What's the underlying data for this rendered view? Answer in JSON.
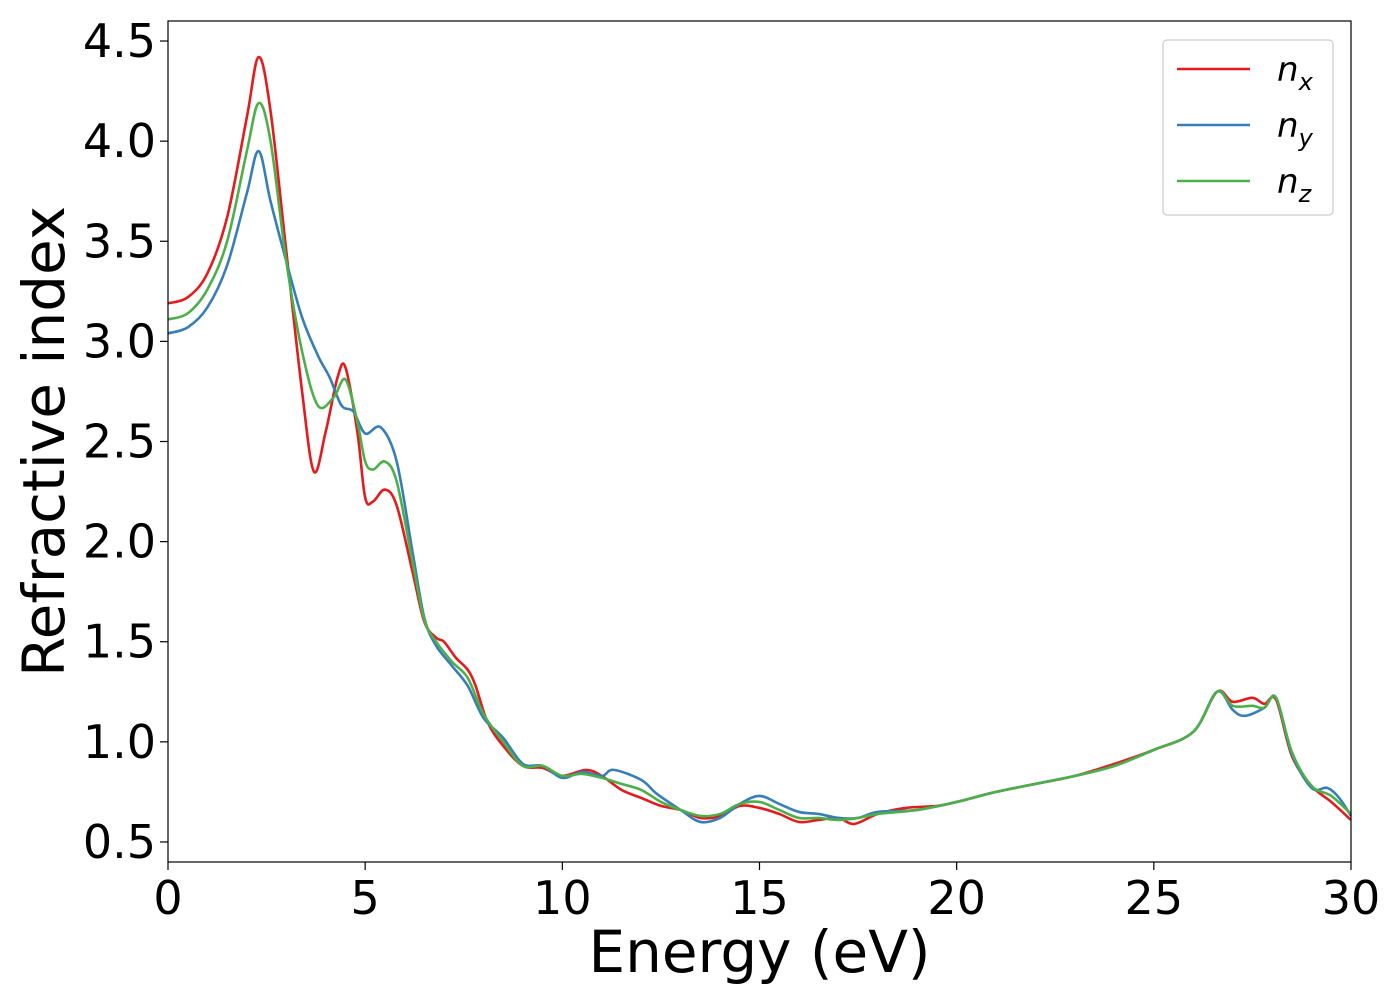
{
  "chart_data": {
    "type": "line",
    "xlabel": "Energy (eV)",
    "ylabel": "Refractive index",
    "xlim": [
      0,
      30
    ],
    "ylim": [
      0.4,
      4.6
    ],
    "x_ticks": [
      "0",
      "5",
      "10",
      "15",
      "20",
      "25",
      "30"
    ],
    "y_ticks": [
      "0.5",
      "1.0",
      "1.5",
      "2.0",
      "2.5",
      "3.0",
      "3.5",
      "4.0",
      "4.5"
    ],
    "grid": false,
    "legend_position": "top-right",
    "series": [
      {
        "name": "n",
        "subscript": "x",
        "color": "#e41a1c",
        "points": [
          [
            0,
            3.19
          ],
          [
            0.5,
            3.22
          ],
          [
            1.0,
            3.34
          ],
          [
            1.5,
            3.62
          ],
          [
            2.0,
            4.12
          ],
          [
            2.3,
            4.42
          ],
          [
            2.6,
            4.15
          ],
          [
            3.0,
            3.45
          ],
          [
            3.4,
            2.75
          ],
          [
            3.7,
            2.35
          ],
          [
            4.0,
            2.55
          ],
          [
            4.3,
            2.82
          ],
          [
            4.5,
            2.87
          ],
          [
            4.8,
            2.55
          ],
          [
            5.0,
            2.22
          ],
          [
            5.2,
            2.2
          ],
          [
            5.5,
            2.26
          ],
          [
            5.8,
            2.18
          ],
          [
            6.2,
            1.85
          ],
          [
            6.5,
            1.6
          ],
          [
            6.8,
            1.52
          ],
          [
            7.0,
            1.5
          ],
          [
            7.3,
            1.42
          ],
          [
            7.6,
            1.36
          ],
          [
            7.8,
            1.28
          ],
          [
            8.1,
            1.1
          ],
          [
            8.5,
            0.98
          ],
          [
            9.0,
            0.88
          ],
          [
            9.5,
            0.87
          ],
          [
            10.0,
            0.83
          ],
          [
            10.6,
            0.86
          ],
          [
            11.0,
            0.83
          ],
          [
            11.5,
            0.76
          ],
          [
            12.0,
            0.72
          ],
          [
            12.5,
            0.68
          ],
          [
            13.0,
            0.66
          ],
          [
            13.5,
            0.62
          ],
          [
            14.0,
            0.63
          ],
          [
            14.5,
            0.68
          ],
          [
            15.0,
            0.67
          ],
          [
            15.5,
            0.64
          ],
          [
            16.0,
            0.6
          ],
          [
            16.5,
            0.61
          ],
          [
            17.0,
            0.62
          ],
          [
            17.4,
            0.59
          ],
          [
            18.0,
            0.64
          ],
          [
            18.7,
            0.67
          ],
          [
            19.5,
            0.68
          ],
          [
            20.0,
            0.7
          ],
          [
            21.0,
            0.75
          ],
          [
            22.0,
            0.79
          ],
          [
            23.0,
            0.83
          ],
          [
            24.0,
            0.89
          ],
          [
            25.0,
            0.96
          ],
          [
            26.0,
            1.05
          ],
          [
            26.6,
            1.25
          ],
          [
            27.0,
            1.2
          ],
          [
            27.5,
            1.22
          ],
          [
            27.8,
            1.19
          ],
          [
            28.1,
            1.21
          ],
          [
            28.5,
            0.93
          ],
          [
            29.0,
            0.78
          ],
          [
            29.5,
            0.7
          ],
          [
            30.0,
            0.61
          ]
        ]
      },
      {
        "name": "n",
        "subscript": "y",
        "color": "#377eb8",
        "points": [
          [
            0,
            3.04
          ],
          [
            0.5,
            3.07
          ],
          [
            1.0,
            3.17
          ],
          [
            1.5,
            3.38
          ],
          [
            2.0,
            3.74
          ],
          [
            2.3,
            3.95
          ],
          [
            2.6,
            3.7
          ],
          [
            3.0,
            3.4
          ],
          [
            3.4,
            3.12
          ],
          [
            3.8,
            2.93
          ],
          [
            4.1,
            2.82
          ],
          [
            4.4,
            2.68
          ],
          [
            4.7,
            2.65
          ],
          [
            5.0,
            2.54
          ],
          [
            5.4,
            2.57
          ],
          [
            5.8,
            2.4
          ],
          [
            6.2,
            1.95
          ],
          [
            6.5,
            1.62
          ],
          [
            6.8,
            1.48
          ],
          [
            7.2,
            1.38
          ],
          [
            7.6,
            1.28
          ],
          [
            8.0,
            1.12
          ],
          [
            8.5,
            1.02
          ],
          [
            9.0,
            0.89
          ],
          [
            9.5,
            0.88
          ],
          [
            10.0,
            0.82
          ],
          [
            10.5,
            0.85
          ],
          [
            11.0,
            0.83
          ],
          [
            11.3,
            0.86
          ],
          [
            12.0,
            0.81
          ],
          [
            12.4,
            0.74
          ],
          [
            13.0,
            0.66
          ],
          [
            13.5,
            0.6
          ],
          [
            14.0,
            0.62
          ],
          [
            14.5,
            0.69
          ],
          [
            15.0,
            0.73
          ],
          [
            15.5,
            0.69
          ],
          [
            16.0,
            0.65
          ],
          [
            16.5,
            0.64
          ],
          [
            17.0,
            0.62
          ],
          [
            17.5,
            0.62
          ],
          [
            18.0,
            0.65
          ],
          [
            19.0,
            0.66
          ],
          [
            20.0,
            0.7
          ],
          [
            21.0,
            0.75
          ],
          [
            22.0,
            0.79
          ],
          [
            23.0,
            0.83
          ],
          [
            24.0,
            0.88
          ],
          [
            25.0,
            0.96
          ],
          [
            26.0,
            1.05
          ],
          [
            26.6,
            1.25
          ],
          [
            27.0,
            1.16
          ],
          [
            27.3,
            1.13
          ],
          [
            27.8,
            1.17
          ],
          [
            28.1,
            1.22
          ],
          [
            28.5,
            0.94
          ],
          [
            29.0,
            0.77
          ],
          [
            29.4,
            0.77
          ],
          [
            29.7,
            0.72
          ],
          [
            30.0,
            0.63
          ]
        ]
      },
      {
        "name": "n",
        "subscript": "z",
        "color": "#4daf4a",
        "points": [
          [
            0,
            3.11
          ],
          [
            0.5,
            3.14
          ],
          [
            1.0,
            3.26
          ],
          [
            1.5,
            3.5
          ],
          [
            2.0,
            3.95
          ],
          [
            2.3,
            4.19
          ],
          [
            2.6,
            4.0
          ],
          [
            3.0,
            3.4
          ],
          [
            3.4,
            2.95
          ],
          [
            3.8,
            2.68
          ],
          [
            4.2,
            2.72
          ],
          [
            4.5,
            2.81
          ],
          [
            4.8,
            2.6
          ],
          [
            5.0,
            2.4
          ],
          [
            5.2,
            2.36
          ],
          [
            5.5,
            2.4
          ],
          [
            5.8,
            2.3
          ],
          [
            6.2,
            1.9
          ],
          [
            6.5,
            1.61
          ],
          [
            6.8,
            1.5
          ],
          [
            7.2,
            1.4
          ],
          [
            7.6,
            1.32
          ],
          [
            8.0,
            1.14
          ],
          [
            8.5,
            1.0
          ],
          [
            9.0,
            0.88
          ],
          [
            9.5,
            0.88
          ],
          [
            10.0,
            0.83
          ],
          [
            10.5,
            0.84
          ],
          [
            11.0,
            0.82
          ],
          [
            11.5,
            0.79
          ],
          [
            12.0,
            0.76
          ],
          [
            12.5,
            0.7
          ],
          [
            13.0,
            0.66
          ],
          [
            13.5,
            0.63
          ],
          [
            14.0,
            0.64
          ],
          [
            14.5,
            0.69
          ],
          [
            15.0,
            0.7
          ],
          [
            15.5,
            0.66
          ],
          [
            16.0,
            0.62
          ],
          [
            16.5,
            0.62
          ],
          [
            17.0,
            0.61
          ],
          [
            17.5,
            0.62
          ],
          [
            18.0,
            0.64
          ],
          [
            19.0,
            0.66
          ],
          [
            20.0,
            0.7
          ],
          [
            21.0,
            0.75
          ],
          [
            22.0,
            0.79
          ],
          [
            23.0,
            0.83
          ],
          [
            24.0,
            0.88
          ],
          [
            25.0,
            0.96
          ],
          [
            26.0,
            1.05
          ],
          [
            26.6,
            1.25
          ],
          [
            27.0,
            1.18
          ],
          [
            27.5,
            1.18
          ],
          [
            27.8,
            1.17
          ],
          [
            28.1,
            1.22
          ],
          [
            28.5,
            0.95
          ],
          [
            29.0,
            0.78
          ],
          [
            29.5,
            0.73
          ],
          [
            30.0,
            0.64
          ]
        ]
      }
    ]
  }
}
